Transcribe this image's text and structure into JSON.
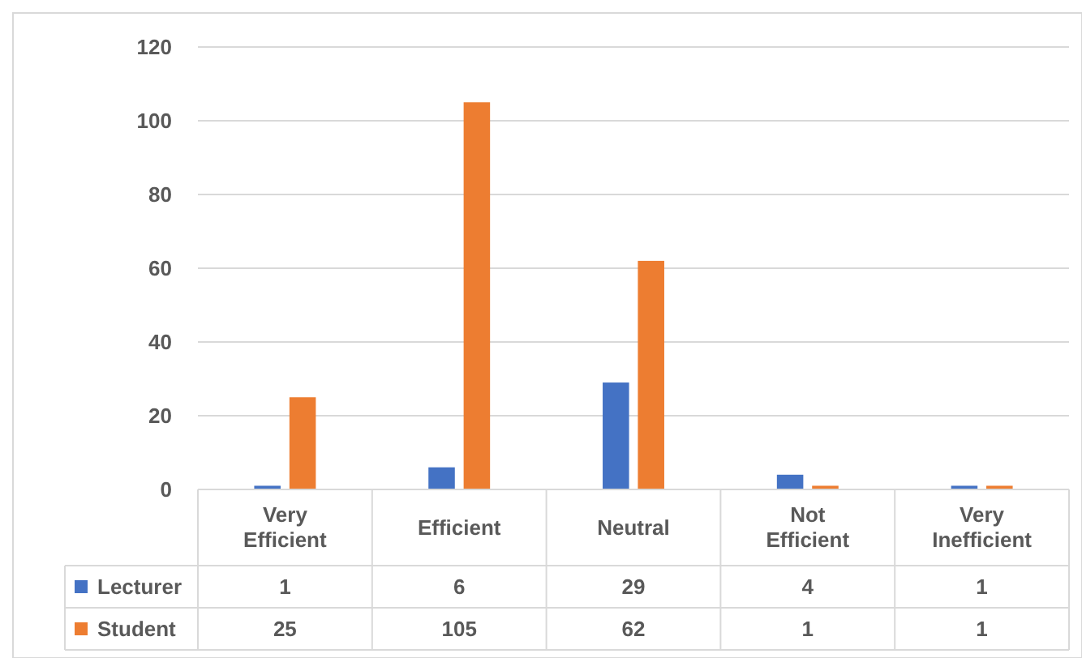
{
  "chart_data": {
    "type": "bar",
    "categories": [
      "Very Efficient",
      "Efficient",
      "Neutral",
      "Not Efficient",
      "Very Inefficient"
    ],
    "series": [
      {
        "name": "Lecturer",
        "color": "#4472c4",
        "values": [
          1,
          6,
          29,
          4,
          1
        ]
      },
      {
        "name": "Student",
        "color": "#ed7d31",
        "values": [
          25,
          105,
          62,
          1,
          1
        ]
      }
    ],
    "ylim": [
      0,
      120
    ],
    "yticks": [
      0,
      20,
      40,
      60,
      80,
      100,
      120
    ],
    "grid": "y",
    "legend": "bottom left",
    "data_labels": true
  }
}
